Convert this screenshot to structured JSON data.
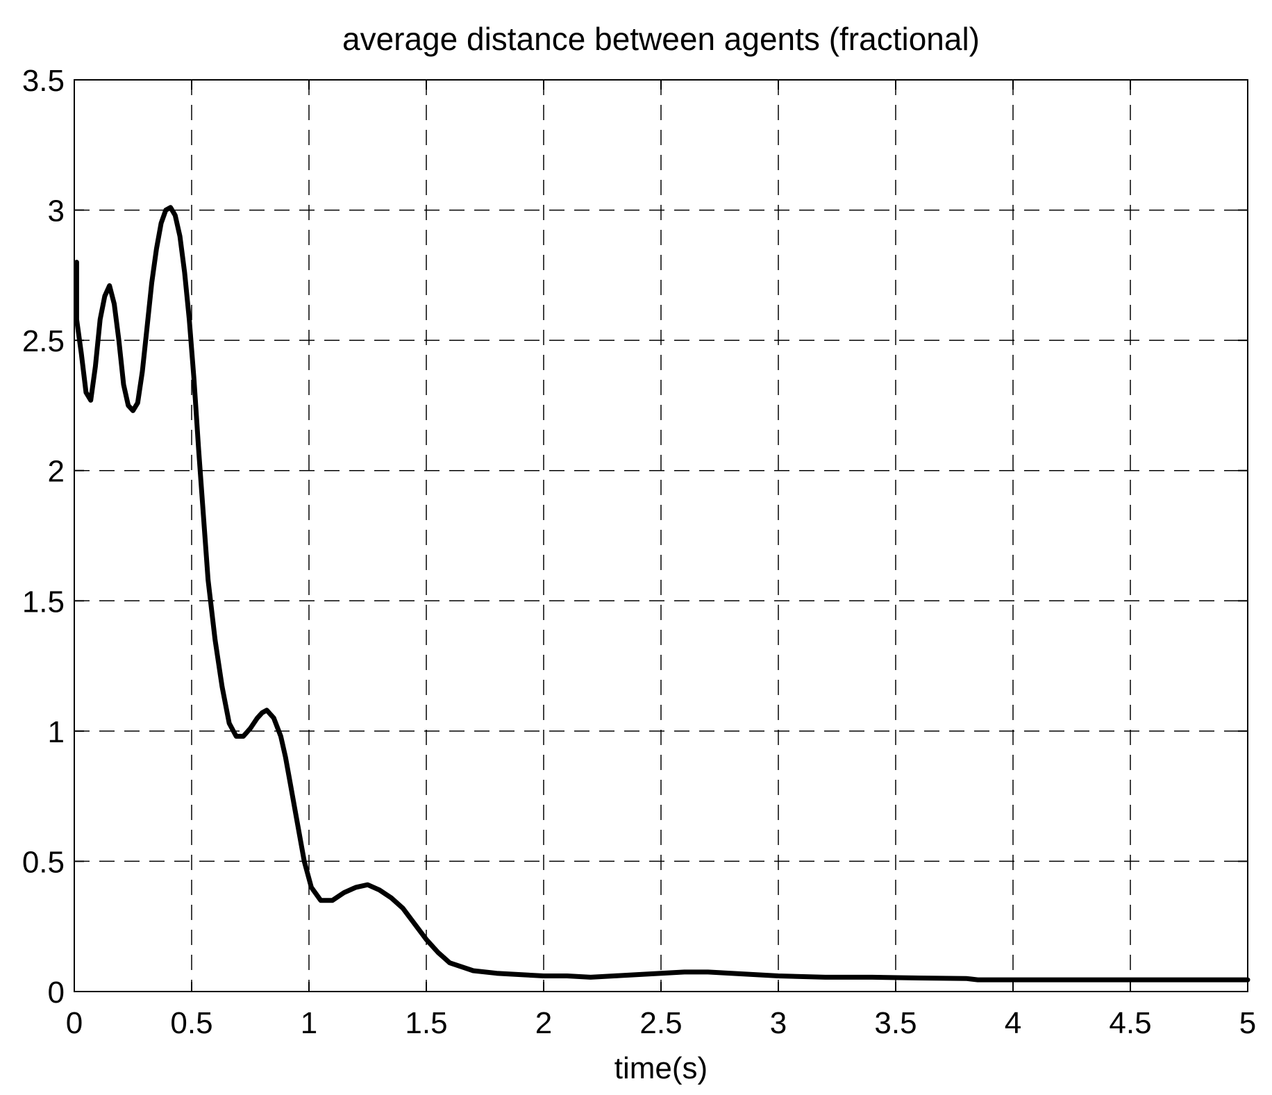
{
  "chart_data": {
    "type": "line",
    "title": "average distance between agents (fractional)",
    "xlabel": "time(s)",
    "ylabel": "",
    "xlim": [
      0,
      5
    ],
    "ylim": [
      0,
      3.5
    ],
    "x_ticks": [
      0,
      0.5,
      1,
      1.5,
      2,
      2.5,
      3,
      3.5,
      4,
      4.5,
      5
    ],
    "y_ticks": [
      0,
      0.5,
      1,
      1.5,
      2,
      2.5,
      3,
      3.5
    ],
    "x_tick_labels": [
      "0",
      "0.5",
      "1",
      "1.5",
      "2",
      "2.5",
      "3",
      "3.5",
      "4",
      "4.5",
      "5"
    ],
    "y_tick_labels": [
      "0",
      "0.5",
      "1",
      "1.5",
      "2",
      "2.5",
      "3",
      "3.5"
    ],
    "grid": true,
    "grid_style": "dashed",
    "line_color": "#000000",
    "series": [
      {
        "x": [
          0.01,
          0.01,
          0.03,
          0.05,
          0.07,
          0.09,
          0.11,
          0.13,
          0.15,
          0.17,
          0.19,
          0.21,
          0.23,
          0.25,
          0.27,
          0.29,
          0.31,
          0.33,
          0.35,
          0.37,
          0.39,
          0.41,
          0.43,
          0.45,
          0.47,
          0.49,
          0.51,
          0.53,
          0.55,
          0.57,
          0.6,
          0.63,
          0.66,
          0.69,
          0.72,
          0.75,
          0.78,
          0.8,
          0.82,
          0.85,
          0.88,
          0.9,
          0.92,
          0.95,
          0.98,
          1.01,
          1.05,
          1.1,
          1.15,
          1.2,
          1.25,
          1.3,
          1.35,
          1.4,
          1.45,
          1.5,
          1.55,
          1.6,
          1.7,
          1.8,
          1.9,
          2.0,
          2.1,
          2.2,
          2.3,
          2.4,
          2.5,
          2.6,
          2.7,
          2.8,
          2.9,
          3.0,
          3.2,
          3.4,
          3.6,
          3.8,
          3.85,
          4.0,
          4.2,
          4.5,
          4.8,
          5.0
        ],
        "y": [
          2.8,
          2.58,
          2.45,
          2.3,
          2.27,
          2.4,
          2.58,
          2.67,
          2.71,
          2.64,
          2.5,
          2.33,
          2.25,
          2.23,
          2.26,
          2.38,
          2.55,
          2.72,
          2.85,
          2.95,
          3.0,
          3.01,
          2.98,
          2.9,
          2.76,
          2.58,
          2.35,
          2.08,
          1.83,
          1.58,
          1.35,
          1.17,
          1.03,
          0.98,
          0.98,
          1.01,
          1.05,
          1.07,
          1.08,
          1.05,
          0.98,
          0.9,
          0.8,
          0.65,
          0.5,
          0.4,
          0.35,
          0.35,
          0.38,
          0.4,
          0.41,
          0.39,
          0.36,
          0.32,
          0.26,
          0.2,
          0.15,
          0.11,
          0.08,
          0.07,
          0.065,
          0.06,
          0.06,
          0.055,
          0.06,
          0.065,
          0.07,
          0.075,
          0.075,
          0.07,
          0.065,
          0.06,
          0.055,
          0.055,
          0.052,
          0.05,
          0.045,
          0.045,
          0.045,
          0.045,
          0.045,
          0.045
        ]
      }
    ]
  }
}
